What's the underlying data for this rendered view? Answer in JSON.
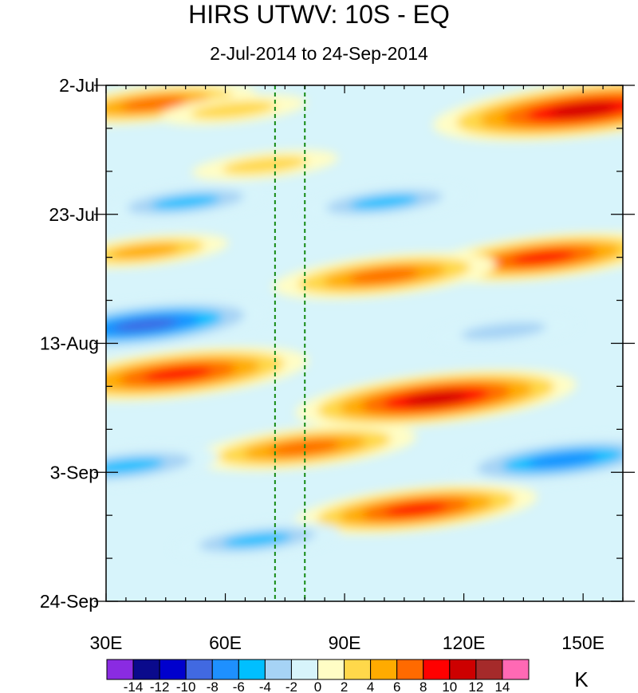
{
  "chart_data": {
    "type": "heatmap",
    "title": "HIRS UTWV: 10S - EQ",
    "subtitle": "2-Jul-2014 to 24-Sep-2014",
    "x_axis": {
      "min": 30,
      "max": 160,
      "ticks": [
        30,
        60,
        90,
        120,
        150
      ],
      "tick_labels": [
        "30E",
        "60E",
        "90E",
        "120E",
        "150E"
      ]
    },
    "y_axis": {
      "tick_labels": [
        "2-Jul",
        "23-Jul",
        "13-Aug",
        "3-Sep",
        "24-Sep"
      ]
    },
    "reference_lines_lon": [
      72.5,
      80
    ],
    "colorbar": {
      "unit": "K",
      "labels": [
        "-14",
        "-12",
        "-10",
        "-8",
        "-6",
        "-4",
        "-2",
        "0",
        "2",
        "4",
        "6",
        "8",
        "10",
        "12",
        "14"
      ],
      "colors": [
        "#8a2be2",
        "#0a0a8c",
        "#0000cd",
        "#4169e1",
        "#1e90ff",
        "#00bfff",
        "#a6d3f5",
        "#d7f4fb",
        "#fffdc5",
        "#ffd84a",
        "#ffab00",
        "#ff6a00",
        "#ff0000",
        "#cd0000",
        "#a52a2a",
        "#ff69b4"
      ]
    },
    "anomaly_features": [
      {
        "lon": 42,
        "day": 3,
        "value": 7
      },
      {
        "lon": 62,
        "day": 4,
        "value": 4
      },
      {
        "lon": 150,
        "day": 4,
        "value": 12
      },
      {
        "lon": 70,
        "day": 13,
        "value": 4
      },
      {
        "lon": 40,
        "day": 27,
        "value": 5
      },
      {
        "lon": 140,
        "day": 28,
        "value": 9
      },
      {
        "lon": 100,
        "day": 31,
        "value": 8
      },
      {
        "lon": 48,
        "day": 47,
        "value": 10
      },
      {
        "lon": 113,
        "day": 51,
        "value": 11
      },
      {
        "lon": 80,
        "day": 59,
        "value": 8
      },
      {
        "lon": 108,
        "day": 69,
        "value": 9
      },
      {
        "lon": 40,
        "day": 39,
        "value": -9
      },
      {
        "lon": 50,
        "day": 19,
        "value": -5
      },
      {
        "lon": 100,
        "day": 19,
        "value": -5
      },
      {
        "lon": 35,
        "day": 62,
        "value": -6
      },
      {
        "lon": 145,
        "day": 61,
        "value": -8
      },
      {
        "lon": 68,
        "day": 74,
        "value": -5
      },
      {
        "lon": 130,
        "day": 40,
        "value": -4
      }
    ]
  }
}
